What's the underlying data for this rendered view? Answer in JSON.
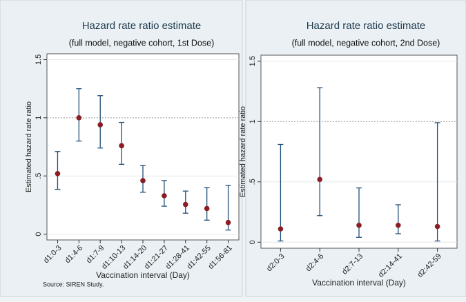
{
  "chart_data": [
    {
      "type": "errorbar",
      "title": "Hazard rate ratio estimate",
      "subtitle": "(full model, negative cohort, 1st Dose)",
      "x_label": "Vaccination interval (Day)",
      "y_label": "Estimated hazard rate ratio",
      "source": "Source: SIREN Study.",
      "categories": [
        "d1:0-3",
        "d1:4-6",
        "d1:7-9",
        "d1:10-13",
        "d1:14-20",
        "d1:21-27",
        "d1:28-41",
        "d1:42-55",
        "d1:56-81"
      ],
      "values": [
        0.52,
        1.0,
        0.94,
        0.76,
        0.46,
        0.33,
        0.255,
        0.22,
        0.1
      ],
      "lower": [
        0.385,
        0.8,
        0.74,
        0.6,
        0.36,
        0.24,
        0.18,
        0.12,
        0.035
      ],
      "upper": [
        0.71,
        1.25,
        1.19,
        0.96,
        0.59,
        0.46,
        0.37,
        0.4,
        0.42
      ],
      "marker_color": "#8b1e24",
      "bar_color": "#1f4e79",
      "ylim": [
        -0.05,
        1.55
      ],
      "yticks": [
        0,
        {
          "value": 0.5,
          "label": ".5"
        },
        1,
        1.5
      ],
      "grid": true,
      "reference_line": 1
    },
    {
      "type": "errorbar",
      "title": "Hazard rate ratio estimate",
      "subtitle": "(full model, negative cohort, 2nd Dose)",
      "x_label": "Vaccination interval (Day)",
      "y_label": "Estimated hazard rate ratio",
      "categories": [
        "d2:0-3",
        "d2:4-6",
        "d2:7-13",
        "d2:14-41",
        "d2:42-59"
      ],
      "values": [
        0.11,
        0.52,
        0.14,
        0.14,
        0.13
      ],
      "lower": [
        0.01,
        0.22,
        0.04,
        0.07,
        0.01
      ],
      "upper": [
        0.81,
        1.28,
        0.45,
        0.31,
        0.99
      ],
      "marker_color": "#8b1e24",
      "bar_color": "#1f4e79",
      "ylim": [
        -0.05,
        1.55
      ],
      "yticks": [
        0,
        {
          "value": 0.5,
          "label": ".5"
        },
        1,
        1.5
      ],
      "grid": true,
      "reference_line": 1
    }
  ]
}
